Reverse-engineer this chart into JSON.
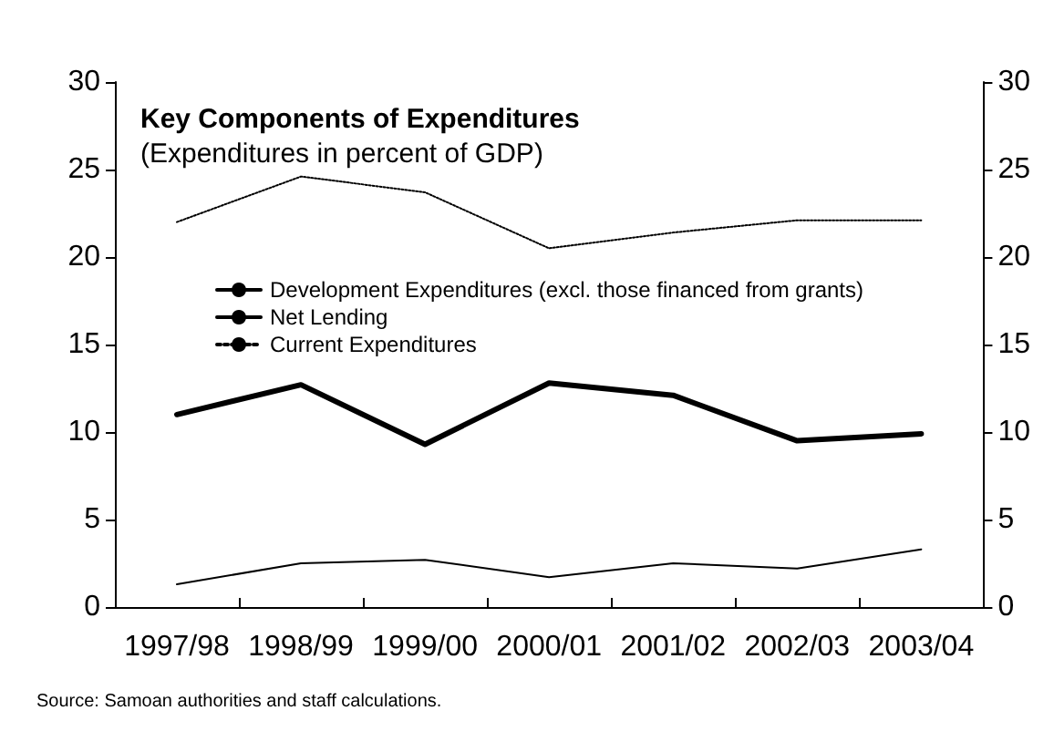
{
  "chart_data": {
    "type": "line",
    "title": "Key Components of Expenditures",
    "subtitle": "(Expenditures in percent of GDP)",
    "categories": [
      "1997/98",
      "1998/99",
      "1999/00",
      "2000/01",
      "2001/02",
      "2002/03",
      "2003/04"
    ],
    "series": [
      {
        "name": "Development Expenditures (excl. those financed from grants)",
        "color": "#000000",
        "values": [
          11.0,
          12.7,
          9.3,
          12.8,
          12.1,
          9.5,
          9.9
        ],
        "line_style": "solid"
      },
      {
        "name": "Net Lending",
        "color": "#000000",
        "values": [
          1.3,
          2.5,
          2.7,
          1.7,
          2.5,
          2.2,
          3.3
        ],
        "line_style": "solid"
      },
      {
        "name": "Current Expenditures",
        "color": "#000000",
        "values": [
          22.0,
          24.6,
          23.7,
          20.5,
          21.4,
          22.1,
          22.1
        ],
        "line_style": "dotted"
      }
    ],
    "ylim": [
      0,
      30
    ],
    "yticks": [
      0,
      5,
      10,
      15,
      20,
      25,
      30
    ],
    "y2lim": [
      0,
      30
    ],
    "y2ticks": [
      0,
      5,
      10,
      15,
      20,
      25,
      30
    ],
    "grid": false,
    "legend": "top left",
    "marker": "none",
    "annotations": [
      "Source: Samoan authorities and staff calculations."
    ]
  }
}
